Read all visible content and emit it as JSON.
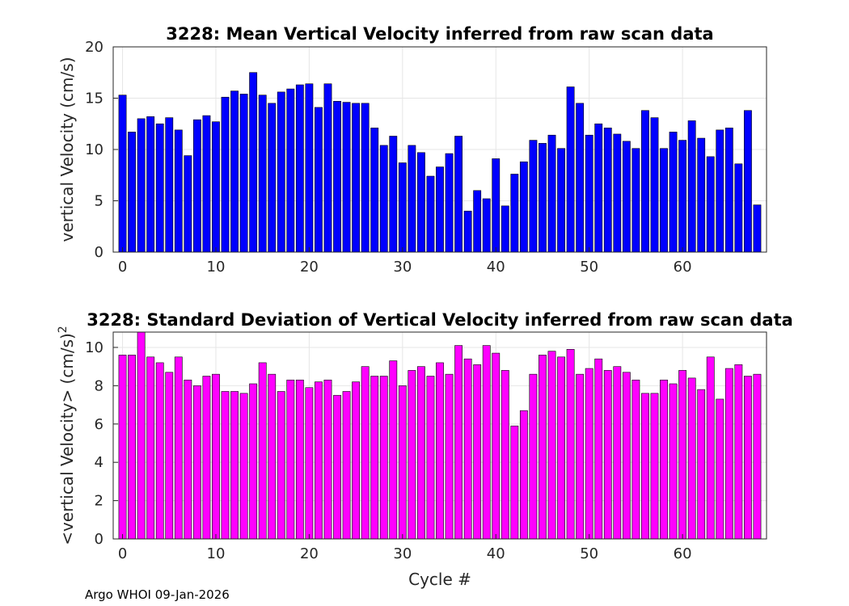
{
  "footer": "Argo WHOI 09-Jan-2026",
  "chart_data": [
    {
      "type": "bar",
      "title": "3228: Mean Vertical Velocity inferred from raw scan data",
      "xlabel": "",
      "ylabel": "vertical Velocity (cm/s)",
      "xlim": [
        -1,
        69
      ],
      "ylim": [
        0,
        20
      ],
      "xticks": [
        0,
        10,
        20,
        30,
        40,
        50,
        60
      ],
      "yticks": [
        0,
        5,
        10,
        15,
        20
      ],
      "grid": true,
      "bar_color": "#0000ff",
      "x": [
        0,
        1,
        2,
        3,
        4,
        5,
        6,
        7,
        8,
        9,
        10,
        11,
        12,
        13,
        14,
        15,
        16,
        17,
        18,
        19,
        20,
        21,
        22,
        23,
        24,
        25,
        26,
        27,
        28,
        29,
        30,
        31,
        32,
        33,
        34,
        35,
        36,
        37,
        38,
        39,
        40,
        41,
        42,
        43,
        44,
        45,
        46,
        47,
        48,
        49,
        50,
        51,
        52,
        53,
        54,
        55,
        56,
        57,
        58,
        59,
        60,
        61,
        62,
        63,
        64,
        65,
        66,
        67,
        68
      ],
      "values": [
        15.3,
        11.7,
        13.0,
        13.2,
        12.5,
        13.1,
        11.9,
        9.4,
        12.9,
        13.3,
        12.7,
        15.1,
        15.7,
        15.4,
        17.5,
        15.3,
        14.5,
        15.6,
        15.9,
        16.3,
        16.4,
        14.1,
        16.4,
        14.7,
        14.6,
        14.5,
        14.5,
        12.1,
        10.4,
        11.3,
        8.7,
        10.4,
        9.7,
        7.4,
        8.3,
        9.6,
        11.3,
        4.0,
        6.0,
        5.2,
        9.1,
        4.5,
        7.6,
        8.8,
        10.9,
        10.6,
        11.4,
        10.1,
        16.1,
        14.5,
        11.4,
        12.5,
        12.1,
        11.5,
        10.8,
        10.1,
        13.8,
        13.1,
        10.1,
        11.7,
        10.9,
        12.8,
        11.1,
        9.3,
        11.9,
        12.1,
        8.6,
        13.8,
        4.6
      ]
    },
    {
      "type": "bar",
      "title": "3228: Standard Deviation of Vertical Velocity inferred from raw scan data",
      "xlabel": "Cycle #",
      "ylabel": "<vertical Velocity> (cm/s)",
      "ylabel_superscript": "2",
      "xlim": [
        -1,
        69
      ],
      "ylim": [
        0,
        10.8
      ],
      "xticks": [
        0,
        10,
        20,
        30,
        40,
        50,
        60
      ],
      "yticks": [
        0,
        2,
        4,
        6,
        8,
        10
      ],
      "grid": true,
      "bar_color": "#ff00ff",
      "x": [
        0,
        1,
        2,
        3,
        4,
        5,
        6,
        7,
        8,
        9,
        10,
        11,
        12,
        13,
        14,
        15,
        16,
        17,
        18,
        19,
        20,
        21,
        22,
        23,
        24,
        25,
        26,
        27,
        28,
        29,
        30,
        31,
        32,
        33,
        34,
        35,
        36,
        37,
        38,
        39,
        40,
        41,
        42,
        43,
        44,
        45,
        46,
        47,
        48,
        49,
        50,
        51,
        52,
        53,
        54,
        55,
        56,
        57,
        58,
        59,
        60,
        61,
        62,
        63,
        64,
        65,
        66,
        67,
        68
      ],
      "values": [
        9.6,
        9.6,
        10.8,
        9.5,
        9.2,
        8.7,
        9.5,
        8.3,
        8.0,
        8.5,
        8.6,
        7.7,
        7.7,
        7.6,
        8.1,
        9.2,
        8.6,
        7.7,
        8.3,
        8.3,
        7.9,
        8.2,
        8.3,
        7.5,
        7.7,
        8.2,
        9.0,
        8.5,
        8.5,
        9.3,
        8.0,
        8.8,
        9.0,
        8.5,
        9.2,
        8.6,
        10.1,
        9.4,
        9.1,
        10.1,
        9.7,
        8.8,
        5.9,
        6.7,
        8.6,
        9.6,
        9.8,
        9.5,
        9.9,
        8.6,
        8.9,
        9.4,
        8.8,
        9.0,
        8.7,
        8.3,
        7.6,
        7.6,
        8.3,
        8.1,
        8.8,
        8.4,
        7.8,
        9.5,
        7.3,
        8.9,
        9.1,
        8.5,
        8.6
      ]
    }
  ]
}
